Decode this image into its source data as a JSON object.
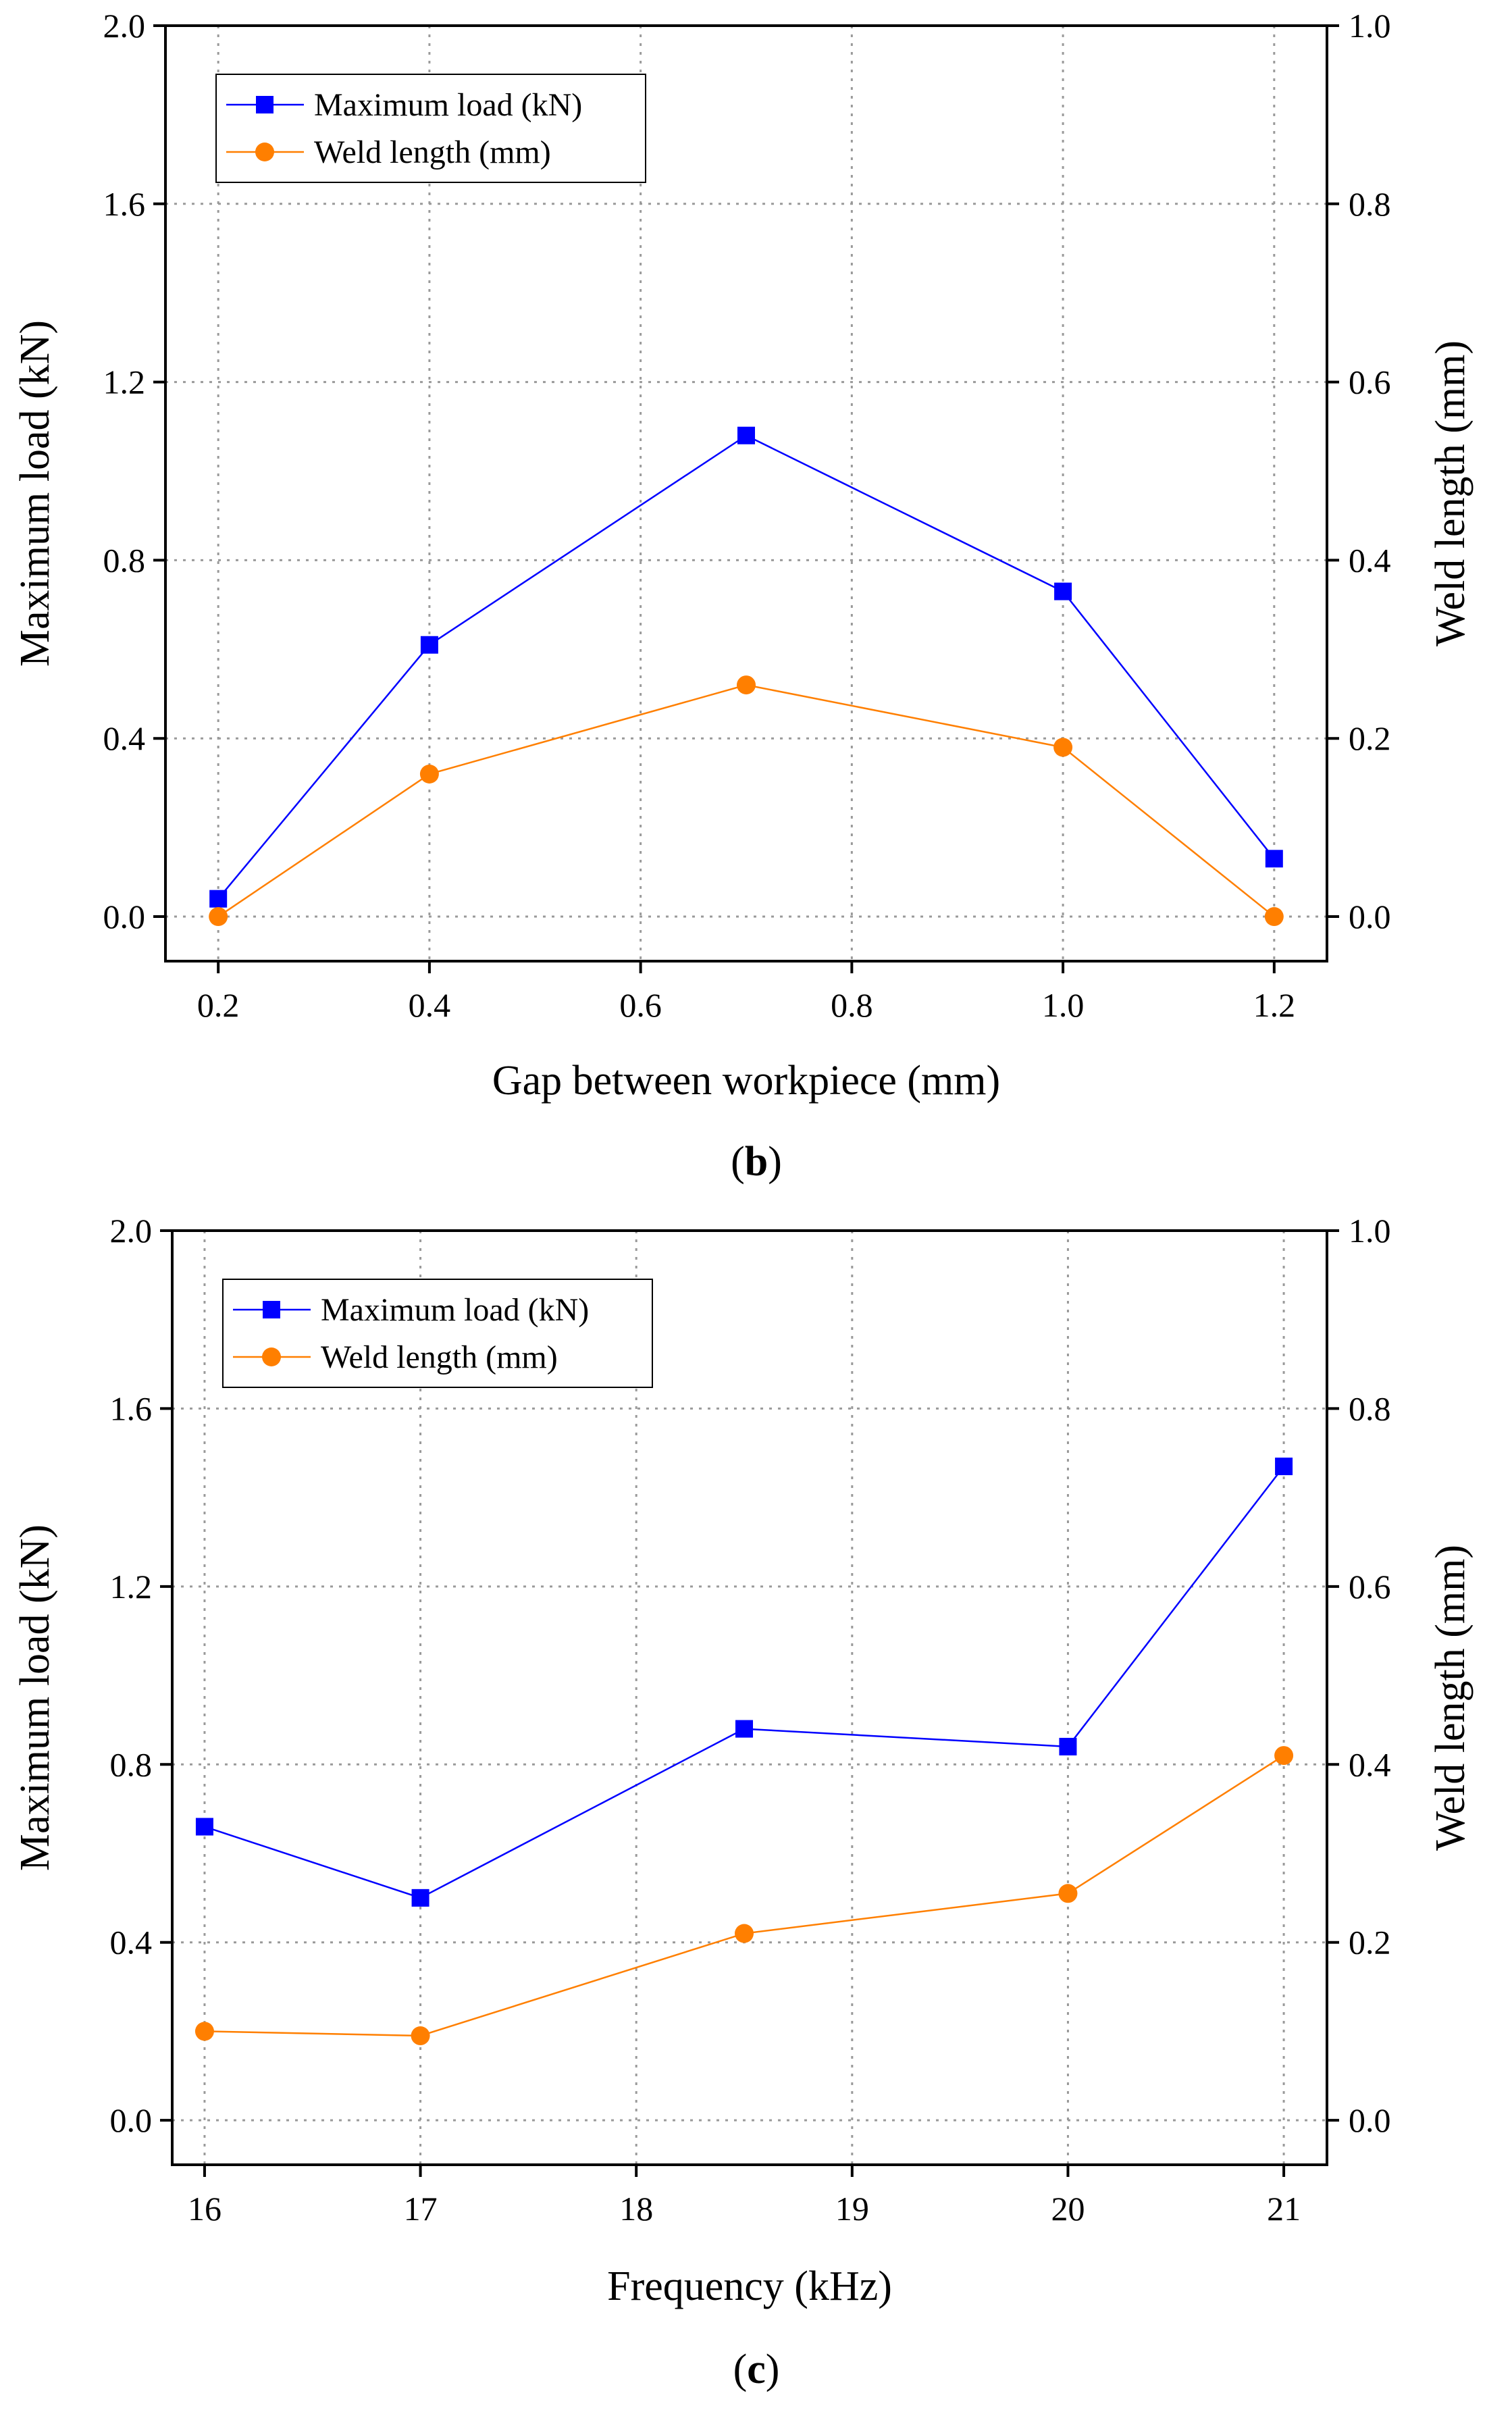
{
  "chart_data": [
    {
      "type": "line",
      "panel_label": "b",
      "xlabel": "Gap between workpiece (mm)",
      "ylabel_left": "Maximum load (kN)",
      "ylabel_right": "Weld length (mm)",
      "xlim": [
        0.15,
        1.25
      ],
      "ylim_left": [
        -0.1,
        2.0
      ],
      "ylim_right": [
        -0.05,
        1.0
      ],
      "xticks": [
        "0.2",
        "0.4",
        "0.6",
        "0.8",
        "1.0",
        "1.2"
      ],
      "xtick_values": [
        0.2,
        0.4,
        0.6,
        0.8,
        1.0,
        1.2
      ],
      "yticks_left": [
        "0.0",
        "0.4",
        "0.8",
        "1.2",
        "1.6",
        "2.0"
      ],
      "ytick_values_left": [
        0.0,
        0.4,
        0.8,
        1.2,
        1.6,
        2.0
      ],
      "yticks_right": [
        "0.0",
        "0.2",
        "0.4",
        "0.6",
        "0.8",
        "1.0"
      ],
      "ytick_values_right": [
        0.0,
        0.2,
        0.4,
        0.6,
        0.8,
        1.0
      ],
      "grid": true,
      "legend_position": "top-left",
      "x": [
        0.2,
        0.4,
        0.7,
        1.0,
        1.2
      ],
      "series": [
        {
          "name": "Maximum load (kN)",
          "axis": "left",
          "marker": "square",
          "color": "#0000ff",
          "values": [
            0.04,
            0.61,
            1.08,
            0.73,
            0.13
          ]
        },
        {
          "name": "Weld length (mm)",
          "axis": "right",
          "marker": "circle",
          "color": "#ff7f00",
          "values": [
            0.0,
            0.16,
            0.26,
            0.19,
            0.0
          ]
        }
      ]
    },
    {
      "type": "line",
      "panel_label": "c",
      "xlabel": "Frequency (kHz)",
      "ylabel_left": "Maximum load (kN)",
      "ylabel_right": "Weld length (mm)",
      "xlim": [
        15.85,
        21.2
      ],
      "ylim_left": [
        -0.1,
        2.0
      ],
      "ylim_right": [
        -0.05,
        1.0
      ],
      "xticks": [
        "16",
        "17",
        "18",
        "19",
        "20",
        "21"
      ],
      "xtick_values": [
        16,
        17,
        18,
        19,
        20,
        21
      ],
      "yticks_left": [
        "0.0",
        "0.4",
        "0.8",
        "1.2",
        "1.6",
        "2.0"
      ],
      "ytick_values_left": [
        0.0,
        0.4,
        0.8,
        1.2,
        1.6,
        2.0
      ],
      "yticks_right": [
        "0.0",
        "0.2",
        "0.4",
        "0.6",
        "0.8",
        "1.0"
      ],
      "ytick_values_right": [
        0.0,
        0.2,
        0.4,
        0.6,
        0.8,
        1.0
      ],
      "grid": true,
      "legend_position": "top-left",
      "x": [
        16,
        17,
        18.5,
        20,
        21
      ],
      "series": [
        {
          "name": "Maximum load (kN)",
          "axis": "left",
          "marker": "square",
          "color": "#0000ff",
          "values": [
            0.66,
            0.5,
            0.88,
            0.84,
            1.47
          ]
        },
        {
          "name": "Weld length (mm)",
          "axis": "right",
          "marker": "circle",
          "color": "#ff7f00",
          "values": [
            0.1,
            0.095,
            0.21,
            0.255,
            0.41
          ]
        }
      ]
    }
  ]
}
